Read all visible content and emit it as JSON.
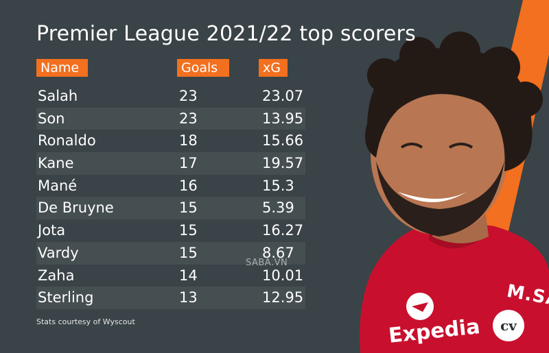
{
  "title": "Premier League 2021/22 top scorers",
  "headers": {
    "name": "Name",
    "goals": "Goals",
    "xg": "xG"
  },
  "rows": [
    {
      "name": "Salah",
      "goals": "23",
      "xg": "23.07"
    },
    {
      "name": "Son",
      "goals": "23",
      "xg": "13.95"
    },
    {
      "name": "Ronaldo",
      "goals": "18",
      "xg": "15.66"
    },
    {
      "name": "Kane",
      "goals": "17",
      "xg": "19.57"
    },
    {
      "name": "Mané",
      "goals": "16",
      "xg": "15.3"
    },
    {
      "name": "De Bruyne",
      "goals": "15",
      "xg": "5.39"
    },
    {
      "name": "Jota",
      "goals": "15",
      "xg": "16.27"
    },
    {
      "name": "Vardy",
      "goals": "15",
      "xg": "8.67"
    },
    {
      "name": "Zaha",
      "goals": "14",
      "xg": "10.01"
    },
    {
      "name": "Sterling",
      "goals": "13",
      "xg": "12.95"
    }
  ],
  "footnote": "Stats courtesy of Wyscout",
  "watermark": "SABA.VN",
  "logo": "cv",
  "photo": {
    "shirt_sponsor": "Expedia",
    "shirt_lettering": "M.SAL",
    "icon": "player-photo-salah"
  },
  "colors": {
    "background": "#3a4347",
    "accent": "#f2701f",
    "text": "#ffffff",
    "shirt": "#c8102e"
  }
}
